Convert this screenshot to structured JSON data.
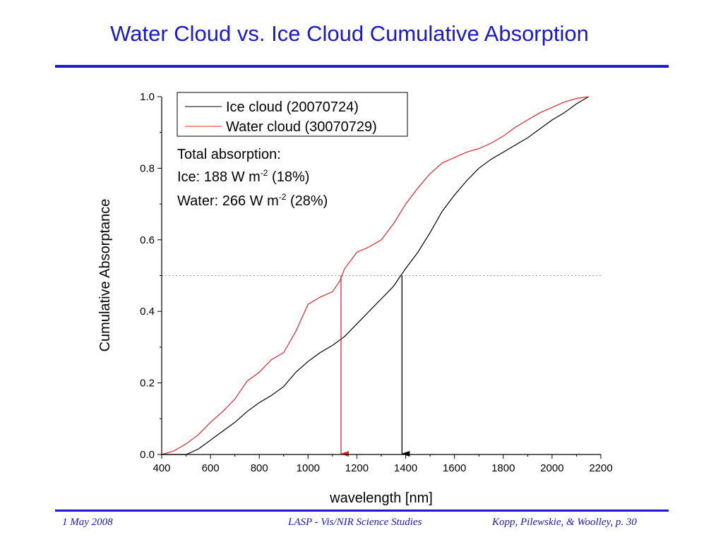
{
  "slide": {
    "title": "Water Cloud vs. Ice Cloud Cumulative Absorption",
    "footer_left": "1 May 2008",
    "footer_center": "LASP - Vis/NIR Science Studies",
    "footer_right": "Kopp, Pilewskie, & Woolley, p. 30"
  },
  "chart_data": {
    "type": "line",
    "title": "",
    "xlabel": "wavelength [nm]",
    "ylabel": "Cumulative Absorptance",
    "xlim": [
      400,
      2200
    ],
    "ylim": [
      0.0,
      1.0
    ],
    "xticks": [
      "400",
      "600",
      "800",
      "1000",
      "1200",
      "1400",
      "1600",
      "1800",
      "2000",
      "2200"
    ],
    "yticks": [
      "0.0",
      "0.2",
      "0.4",
      "0.6",
      "0.8",
      "1.0"
    ],
    "grid": false,
    "legend_position": "top-left",
    "series": [
      {
        "name": "Ice cloud (20070724)",
        "color": "#000000",
        "x": [
          400,
          450,
          500,
          550,
          600,
          650,
          700,
          750,
          800,
          850,
          900,
          950,
          1000,
          1050,
          1100,
          1150,
          1200,
          1250,
          1300,
          1350,
          1380,
          1400,
          1450,
          1500,
          1550,
          1600,
          1650,
          1700,
          1750,
          1800,
          1850,
          1900,
          1950,
          2000,
          2050,
          2100,
          2150
        ],
        "y": [
          0.0,
          0.0,
          0.0,
          0.015,
          0.04,
          0.065,
          0.09,
          0.12,
          0.145,
          0.165,
          0.19,
          0.23,
          0.26,
          0.285,
          0.305,
          0.33,
          0.365,
          0.4,
          0.435,
          0.47,
          0.5,
          0.52,
          0.565,
          0.62,
          0.68,
          0.725,
          0.765,
          0.8,
          0.825,
          0.845,
          0.865,
          0.885,
          0.91,
          0.935,
          0.955,
          0.98,
          1.0
        ]
      },
      {
        "name": "Water cloud (30070729)",
        "color": "#e8262c",
        "x": [
          400,
          450,
          500,
          550,
          600,
          650,
          700,
          730,
          750,
          770,
          800,
          850,
          900,
          950,
          1000,
          1050,
          1100,
          1130,
          1150,
          1200,
          1250,
          1300,
          1350,
          1400,
          1450,
          1500,
          1550,
          1600,
          1650,
          1700,
          1750,
          1800,
          1850,
          1900,
          1950,
          2000,
          2050,
          2100,
          2150
        ],
        "y": [
          0.0,
          0.01,
          0.03,
          0.055,
          0.09,
          0.12,
          0.155,
          0.185,
          0.205,
          0.215,
          0.23,
          0.265,
          0.285,
          0.345,
          0.42,
          0.44,
          0.455,
          0.485,
          0.52,
          0.565,
          0.58,
          0.6,
          0.645,
          0.7,
          0.745,
          0.785,
          0.815,
          0.83,
          0.845,
          0.855,
          0.87,
          0.89,
          0.915,
          0.935,
          0.955,
          0.97,
          0.985,
          0.995,
          1.0
        ]
      }
    ],
    "reference_line": {
      "y": 0.5,
      "style": "dotted",
      "color": "#999999"
    },
    "markers": [
      {
        "series": "Water cloud (30070729)",
        "x": 1135,
        "y": 0.5,
        "color": "#e8262c"
      },
      {
        "series": "Ice cloud (20070724)",
        "x": 1385,
        "y": 0.5,
        "color": "#000000"
      }
    ],
    "annotation": {
      "heading": "Total absorption:",
      "ice_line": "Ice: 188 W m",
      "ice_exp": "-2",
      "ice_tail": " (18%)",
      "water_line": "Water: 266 W m",
      "water_exp": "-2",
      "water_tail": " (28%)"
    }
  }
}
